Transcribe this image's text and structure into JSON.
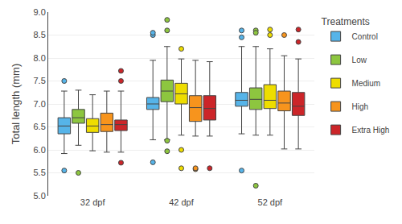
{
  "chart_data": {
    "type": "box",
    "ylabel": "Total length (mm)",
    "ylim": [
      5.0,
      9.0
    ],
    "yticks": [
      {
        "value": 5.0,
        "label": "5.0"
      },
      {
        "value": 5.5,
        "label": "5.5"
      },
      {
        "value": 6.0,
        "label": "6.0"
      },
      {
        "value": 6.5,
        "label": "6.5"
      },
      {
        "value": 7.0,
        "label": "7.0"
      },
      {
        "value": 7.5,
        "label": "7.5"
      },
      {
        "value": 8.0,
        "label": "8.0"
      },
      {
        "value": 8.5,
        "label": "8.5"
      },
      {
        "value": 9.0,
        "label": "9.0"
      }
    ],
    "grid": true,
    "legend": "right",
    "legend_title": "Treatments",
    "categories": [
      "32 dpf",
      "42 dpf",
      "52 dpf"
    ],
    "series": [
      {
        "name": "Control",
        "color": "#56B4E9",
        "values": [
          {
            "median": 6.52,
            "q1": 6.35,
            "q3": 6.7,
            "whisker_high": 7.28,
            "whisker_low": 5.92,
            "outliers": [
              7.5,
              5.55
            ]
          },
          {
            "median": 7.0,
            "q1": 6.88,
            "q3": 7.14,
            "whisker_high": 7.95,
            "whisker_low": 6.22,
            "outliers": [
              8.5,
              8.55,
              5.73
            ]
          },
          {
            "median": 7.08,
            "q1": 6.95,
            "q3": 7.25,
            "whisker_high": 8.25,
            "whisker_low": 6.35,
            "outliers": [
              8.45,
              8.6,
              5.55
            ]
          }
        ]
      },
      {
        "name": "Low",
        "color": "#8DC63F",
        "values": [
          {
            "median": 6.7,
            "q1": 6.58,
            "q3": 6.88,
            "whisker_high": 7.3,
            "whisker_low": 6.1,
            "outliers": [
              5.5
            ]
          },
          {
            "median": 7.28,
            "q1": 7.05,
            "q3": 7.52,
            "whisker_high": 8.25,
            "whisker_low": 6.22,
            "outliers": [
              8.83,
              8.6,
              5.97,
              6.2
            ]
          },
          {
            "median": 7.1,
            "q1": 6.88,
            "q3": 7.35,
            "whisker_high": 8.25,
            "whisker_low": 6.32,
            "outliers": [
              8.6,
              8.55,
              5.22
            ]
          }
        ]
      },
      {
        "name": "Medium",
        "color": "#EEDD00",
        "values": [
          {
            "median": 6.52,
            "q1": 6.38,
            "q3": 6.68,
            "whisker_high": 7.2,
            "whisker_low": 5.98,
            "outliers": []
          },
          {
            "median": 7.22,
            "q1": 7.0,
            "q3": 7.45,
            "whisker_high": 7.98,
            "whisker_low": 6.32,
            "outliers": [
              8.2,
              6.0,
              5.6
            ]
          },
          {
            "median": 7.08,
            "q1": 6.9,
            "q3": 7.42,
            "whisker_high": 8.2,
            "whisker_low": 6.32,
            "outliers": [
              8.5,
              8.62
            ]
          }
        ]
      },
      {
        "name": "High",
        "color": "#F7941D",
        "values": [
          {
            "median": 6.55,
            "q1": 6.4,
            "q3": 6.8,
            "whisker_high": 7.28,
            "whisker_low": 5.95,
            "outliers": []
          },
          {
            "median": 6.92,
            "q1": 6.62,
            "q3": 7.18,
            "whisker_high": 7.95,
            "whisker_low": 6.3,
            "outliers": [
              5.58,
              5.6
            ]
          },
          {
            "median": 7.02,
            "q1": 6.85,
            "q3": 7.28,
            "whisker_high": 8.05,
            "whisker_low": 6.02,
            "outliers": [
              8.5
            ]
          }
        ]
      },
      {
        "name": "Extra High",
        "color": "#CC2529",
        "values": [
          {
            "median": 6.55,
            "q1": 6.42,
            "q3": 6.65,
            "whisker_high": 7.28,
            "whisker_low": 5.95,
            "outliers": [
              7.72,
              7.5,
              5.72
            ]
          },
          {
            "median": 6.9,
            "q1": 6.65,
            "q3": 7.18,
            "whisker_high": 7.92,
            "whisker_low": 6.3,
            "outliers": [
              5.6
            ]
          },
          {
            "median": 6.95,
            "q1": 6.75,
            "q3": 7.25,
            "whisker_high": 7.98,
            "whisker_low": 6.02,
            "outliers": [
              8.62,
              8.35
            ]
          }
        ]
      }
    ]
  }
}
